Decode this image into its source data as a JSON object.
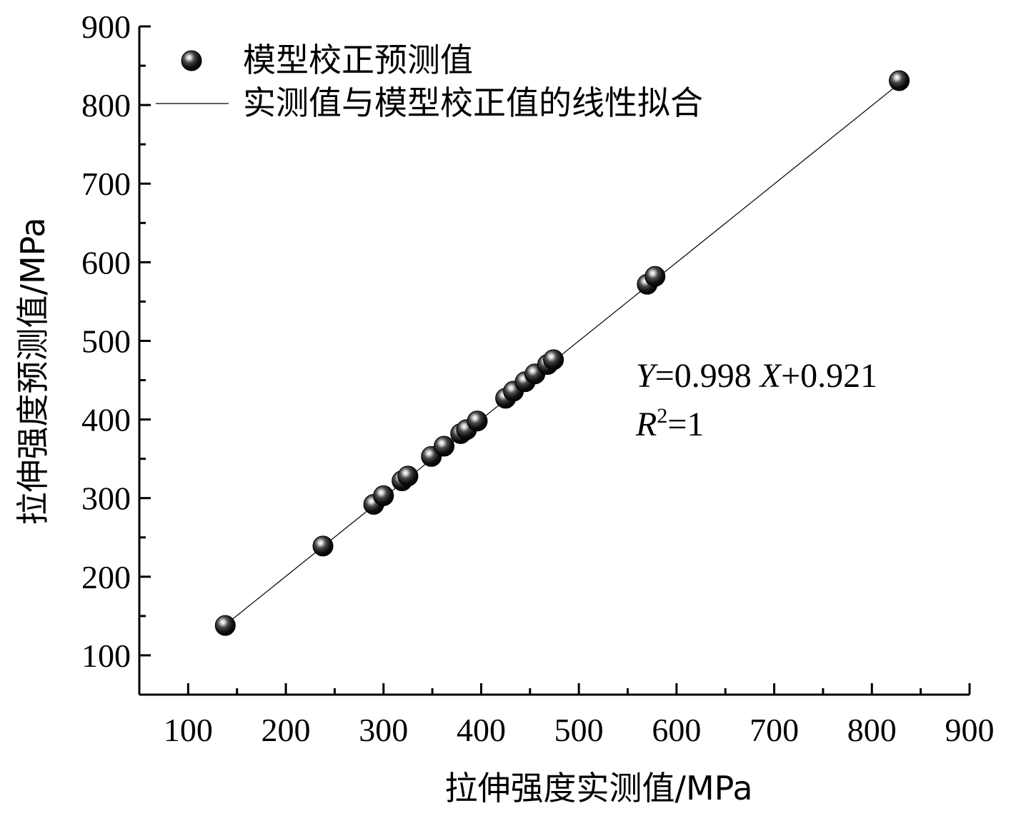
{
  "chart_data": {
    "type": "scatter",
    "xlabel": "拉伸强度实测值/MPa",
    "ylabel": "拉伸强度预测值/MPa",
    "xlim": [
      50,
      900
    ],
    "ylim": [
      50,
      900
    ],
    "xticks": [
      100,
      200,
      300,
      400,
      500,
      600,
      700,
      800,
      900
    ],
    "yticks": [
      100,
      200,
      300,
      400,
      500,
      600,
      700,
      800,
      900
    ],
    "legend": {
      "position": "top-left",
      "scatter_label": "模型校正预测值",
      "line_label": "实测值与模型校正值的线性拟合"
    },
    "annotation": {
      "eq_y": "Y",
      "eq_rest1": "=0.998 ",
      "eq_x": "X",
      "eq_rest2": "+0.921",
      "r_sym": "R",
      "r_sup": "2",
      "r_rest": "=1"
    },
    "fit": {
      "slope": 0.998,
      "intercept": 0.921,
      "x_range": [
        138,
        828
      ]
    },
    "series": [
      {
        "name": "模型校正预测值",
        "points": [
          {
            "x": 138,
            "y": 138
          },
          {
            "x": 238,
            "y": 239
          },
          {
            "x": 290,
            "y": 292
          },
          {
            "x": 300,
            "y": 303
          },
          {
            "x": 319,
            "y": 322
          },
          {
            "x": 325,
            "y": 328
          },
          {
            "x": 349,
            "y": 353
          },
          {
            "x": 362,
            "y": 366
          },
          {
            "x": 379,
            "y": 382
          },
          {
            "x": 385,
            "y": 387
          },
          {
            "x": 396,
            "y": 398
          },
          {
            "x": 425,
            "y": 427
          },
          {
            "x": 433,
            "y": 436
          },
          {
            "x": 445,
            "y": 448
          },
          {
            "x": 455,
            "y": 458
          },
          {
            "x": 468,
            "y": 470
          },
          {
            "x": 474,
            "y": 476
          },
          {
            "x": 570,
            "y": 572
          },
          {
            "x": 578,
            "y": 582
          },
          {
            "x": 828,
            "y": 831
          }
        ]
      }
    ]
  }
}
